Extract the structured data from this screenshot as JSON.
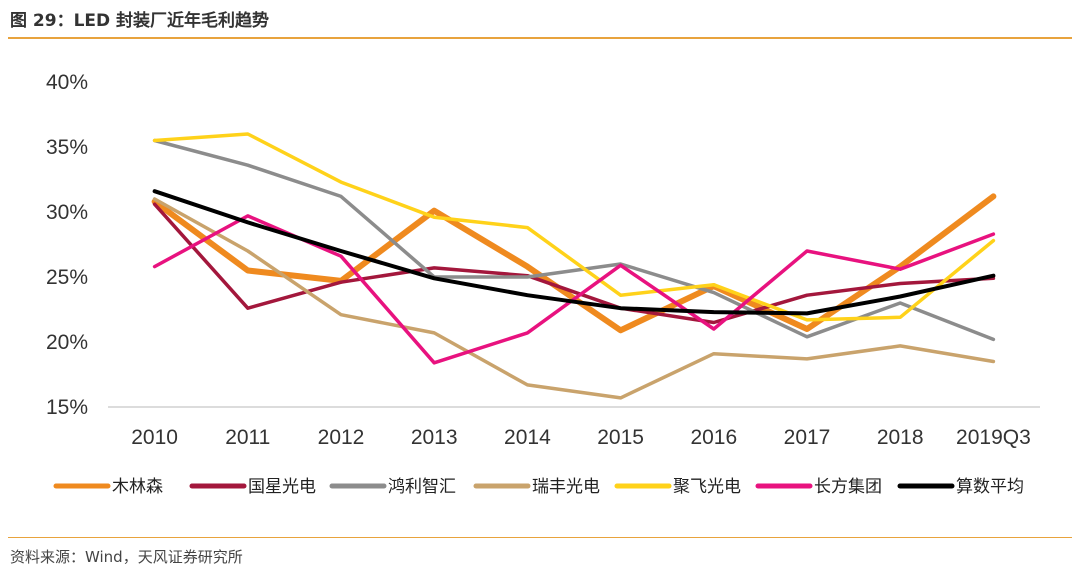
{
  "header": {
    "title": "图 29：LED 封装厂近年毛利趋势"
  },
  "footer": {
    "source": "资料来源：Wind，天风证券研究所"
  },
  "chart_data": {
    "type": "line",
    "categories": [
      "2010",
      "2011",
      "2012",
      "2013",
      "2014",
      "2015",
      "2016",
      "2017",
      "2018",
      "2019Q3"
    ],
    "yticks": [
      "15%",
      "20%",
      "25%",
      "30%",
      "35%",
      "40%"
    ],
    "ylim": [
      15,
      40
    ],
    "grid": false,
    "legend_position": "bottom",
    "series": [
      {
        "name": "木林森",
        "color": "#ef8a1f",
        "width": 6,
        "values": [
          30.8,
          25.5,
          24.7,
          30.1,
          25.8,
          20.9,
          24.3,
          21.0,
          25.8,
          31.2
        ]
      },
      {
        "name": "国星光电",
        "color": "#a3173c",
        "width": 3.5,
        "values": [
          30.6,
          22.6,
          24.6,
          25.7,
          25.1,
          22.6,
          21.5,
          23.6,
          24.5,
          24.9
        ]
      },
      {
        "name": "鸿利智汇",
        "color": "#8c8c8c",
        "width": 3.5,
        "values": [
          35.5,
          33.6,
          31.2,
          25.0,
          25.0,
          26.0,
          23.8,
          20.4,
          23.0,
          20.2
        ]
      },
      {
        "name": "瑞丰光电",
        "color": "#c9a36c",
        "width": 3.5,
        "values": [
          31.0,
          27.0,
          22.1,
          20.7,
          16.7,
          15.7,
          19.1,
          18.7,
          19.7,
          18.5
        ]
      },
      {
        "name": "聚飞光电",
        "color": "#ffd21a",
        "width": 3.5,
        "values": [
          35.5,
          36.0,
          32.3,
          29.6,
          28.8,
          23.6,
          24.4,
          21.7,
          21.9,
          27.8
        ]
      },
      {
        "name": "长方集团",
        "color": "#e8127f",
        "width": 3.5,
        "values": [
          25.8,
          29.7,
          26.6,
          18.4,
          20.7,
          25.9,
          21.0,
          27.0,
          25.6,
          28.3
        ]
      },
      {
        "name": "算数平均",
        "color": "#000000",
        "width": 4,
        "values": [
          31.6,
          29.2,
          27.0,
          24.9,
          23.6,
          22.6,
          22.3,
          22.2,
          23.5,
          25.1
        ]
      }
    ]
  }
}
